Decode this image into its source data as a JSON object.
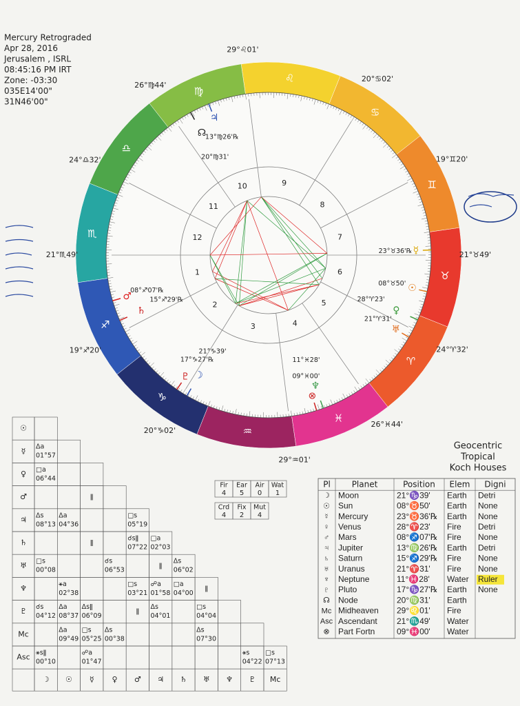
{
  "header": {
    "lines": [
      "Mercury Retrograded",
      "Apr 28, 2016",
      "Jerusalem , ISRL",
      "08:45:16 PM IRT",
      "Zone: -03:30",
      "035E14'00\"",
      "31N46'00\""
    ]
  },
  "system": [
    "Geocentric",
    "Tropical",
    "Koch Houses"
  ],
  "wheel": {
    "signs": [
      "♈",
      "♉",
      "♊",
      "♋",
      "♌",
      "♍",
      "♎",
      "♏",
      "♐",
      "♑",
      "♒",
      "♓"
    ],
    "houses": [
      1,
      2,
      3,
      4,
      5,
      6,
      7,
      8,
      9,
      10,
      11,
      12
    ],
    "cusps": [
      "21°♏49'",
      "19°♐20'",
      "20°♑02'",
      "29°♒01'",
      "26°♓44'",
      "24°♈32'",
      "21°♉49'",
      "19°♊20'",
      "20°♋02'",
      "29°♌01'",
      "26°♍44'",
      "24°♎32'"
    ]
  },
  "elements": {
    "header": [
      "Fir",
      "Ear",
      "Air",
      "Wat"
    ],
    "values": [
      4,
      5,
      0,
      1
    ]
  },
  "modes": {
    "header": [
      "Crd",
      "Fix",
      "Mut"
    ],
    "values": [
      4,
      2,
      4
    ]
  },
  "planet_table": {
    "header": [
      "Pl",
      "Planet",
      "Position",
      "Elem",
      "Digni"
    ],
    "rows": [
      [
        "☽",
        "Moon",
        "21°♑39'",
        "Earth",
        "Detri"
      ],
      [
        "☉",
        "Sun",
        "08°♉50'",
        "Earth",
        "None"
      ],
      [
        "☿",
        "Mercury",
        "23°♉36'℞",
        "Earth",
        "None"
      ],
      [
        "♀",
        "Venus",
        "28°♈23'",
        "Fire",
        "Detri"
      ],
      [
        "♂",
        "Mars",
        "08°♐07'℞",
        "Fire",
        "None"
      ],
      [
        "♃",
        "Jupiter",
        "13°♍26'℞",
        "Earth",
        "Detri"
      ],
      [
        "♄",
        "Saturn",
        "15°♐29'℞",
        "Fire",
        "None"
      ],
      [
        "♅",
        "Uranus",
        "21°♈31'",
        "Fire",
        "None"
      ],
      [
        "♆",
        "Neptune",
        "11°♓28'",
        "Water",
        "Ruler"
      ],
      [
        "♇",
        "Pluto",
        "17°♑27'℞",
        "Earth",
        "None"
      ],
      [
        "☊",
        "Node",
        "20°♍31'",
        "Earth"
      ],
      [
        "Mc",
        "Midheaven",
        "29°♌01'",
        "Fire"
      ],
      [
        "Asc",
        "Ascendant",
        "21°♏49'",
        "Water"
      ],
      [
        "⊗",
        "Part Fortn",
        "09°♓00'",
        "Water"
      ]
    ]
  },
  "aspect_grid": {
    "row_labels": [
      "☉",
      "☿",
      "♀",
      "♂",
      "♃",
      "♄",
      "♅",
      "♆",
      "♇",
      "Mc",
      "Asc"
    ],
    "col_labels": [
      "☽",
      "☉",
      "☿",
      "♀",
      "♂",
      "♃",
      "♄",
      "♅",
      "♆",
      "♇",
      "Mc"
    ],
    "rows": [
      [
        null
      ],
      [
        [
          "Δa",
          "01°57"
        ],
        null
      ],
      [
        [
          "□a",
          "06°44"
        ],
        null,
        null
      ],
      [
        null,
        null,
        [
          "ǁ"
        ],
        null
      ],
      [
        [
          "Δs",
          "08°13"
        ],
        [
          "Δa",
          "04°36"
        ],
        null,
        null,
        [
          "□s",
          "05°19"
        ]
      ],
      [
        null,
        null,
        [
          "ǁ"
        ],
        null,
        [
          "☌sǁ",
          "07°22"
        ],
        [
          "□a",
          "02°03"
        ]
      ],
      [
        [
          "□s",
          "00°08"
        ],
        null,
        null,
        [
          "☌s",
          "06°53"
        ],
        null,
        [
          "ǁ"
        ],
        [
          "Δs",
          "06°02"
        ]
      ],
      [
        null,
        [
          "⚹a",
          "02°38"
        ],
        null,
        null,
        [
          "□s",
          "03°21"
        ],
        [
          "☍a",
          "01°58"
        ],
        [
          "□a",
          "04°00"
        ],
        [
          "ǁ"
        ]
      ],
      [
        [
          "☌s",
          "04°12"
        ],
        [
          "Δa",
          "08°37"
        ],
        [
          "Δsǁ",
          "06°09"
        ],
        null,
        [
          "ǁ"
        ],
        [
          "Δs",
          "04°01"
        ],
        null,
        [
          "□s",
          "04°04"
        ],
        null
      ],
      [
        null,
        [
          "Δa",
          "09°49"
        ],
        [
          "□s",
          "05°25"
        ],
        [
          "Δs",
          "00°38"
        ],
        null,
        null,
        null,
        [
          "Δs",
          "07°30"
        ],
        null,
        null
      ],
      [
        [
          "⚹sǁ",
          "00°10"
        ],
        null,
        [
          "☍a",
          "01°47"
        ],
        null,
        null,
        null,
        null,
        null,
        null,
        [
          "⚹s",
          "04°22"
        ],
        [
          "□s",
          "07°13"
        ]
      ]
    ]
  }
}
